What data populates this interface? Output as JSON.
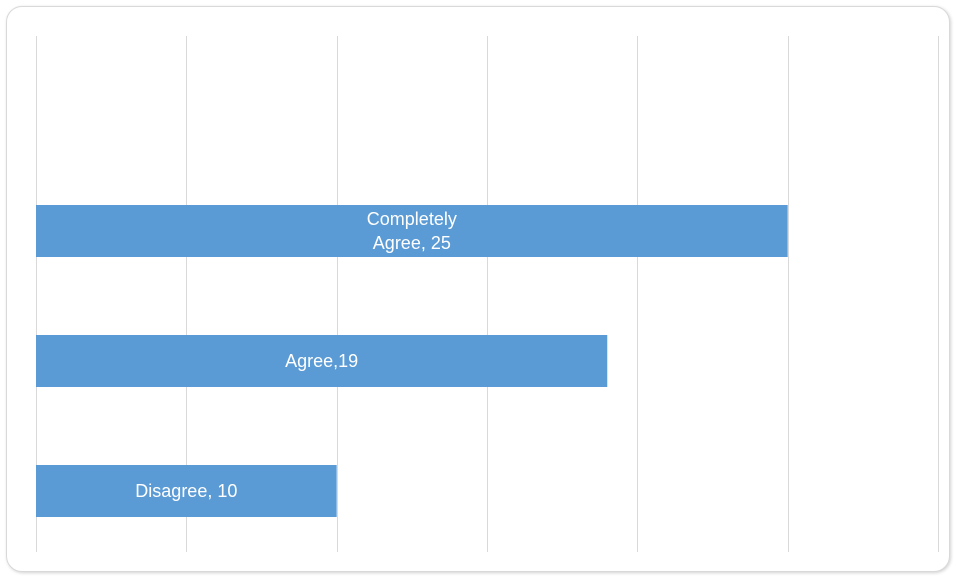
{
  "chart_data": {
    "type": "bar",
    "orientation": "horizontal",
    "categories": [
      "Completely Agree",
      "Agree",
      "Disagree"
    ],
    "values": [
      25,
      19,
      10
    ],
    "data_labels": [
      [
        "Completely",
        "Agree, 25"
      ],
      [
        "Agree,19"
      ],
      [
        "Disagree, 10"
      ]
    ],
    "xlim": [
      0,
      30
    ],
    "x_gridlines": [
      0,
      5,
      10,
      15,
      20,
      25,
      30
    ],
    "grid": true,
    "bar_color": "#5b9bd5",
    "grid_color": "#d9d9d9",
    "title": "",
    "xlabel": "",
    "ylabel": ""
  }
}
